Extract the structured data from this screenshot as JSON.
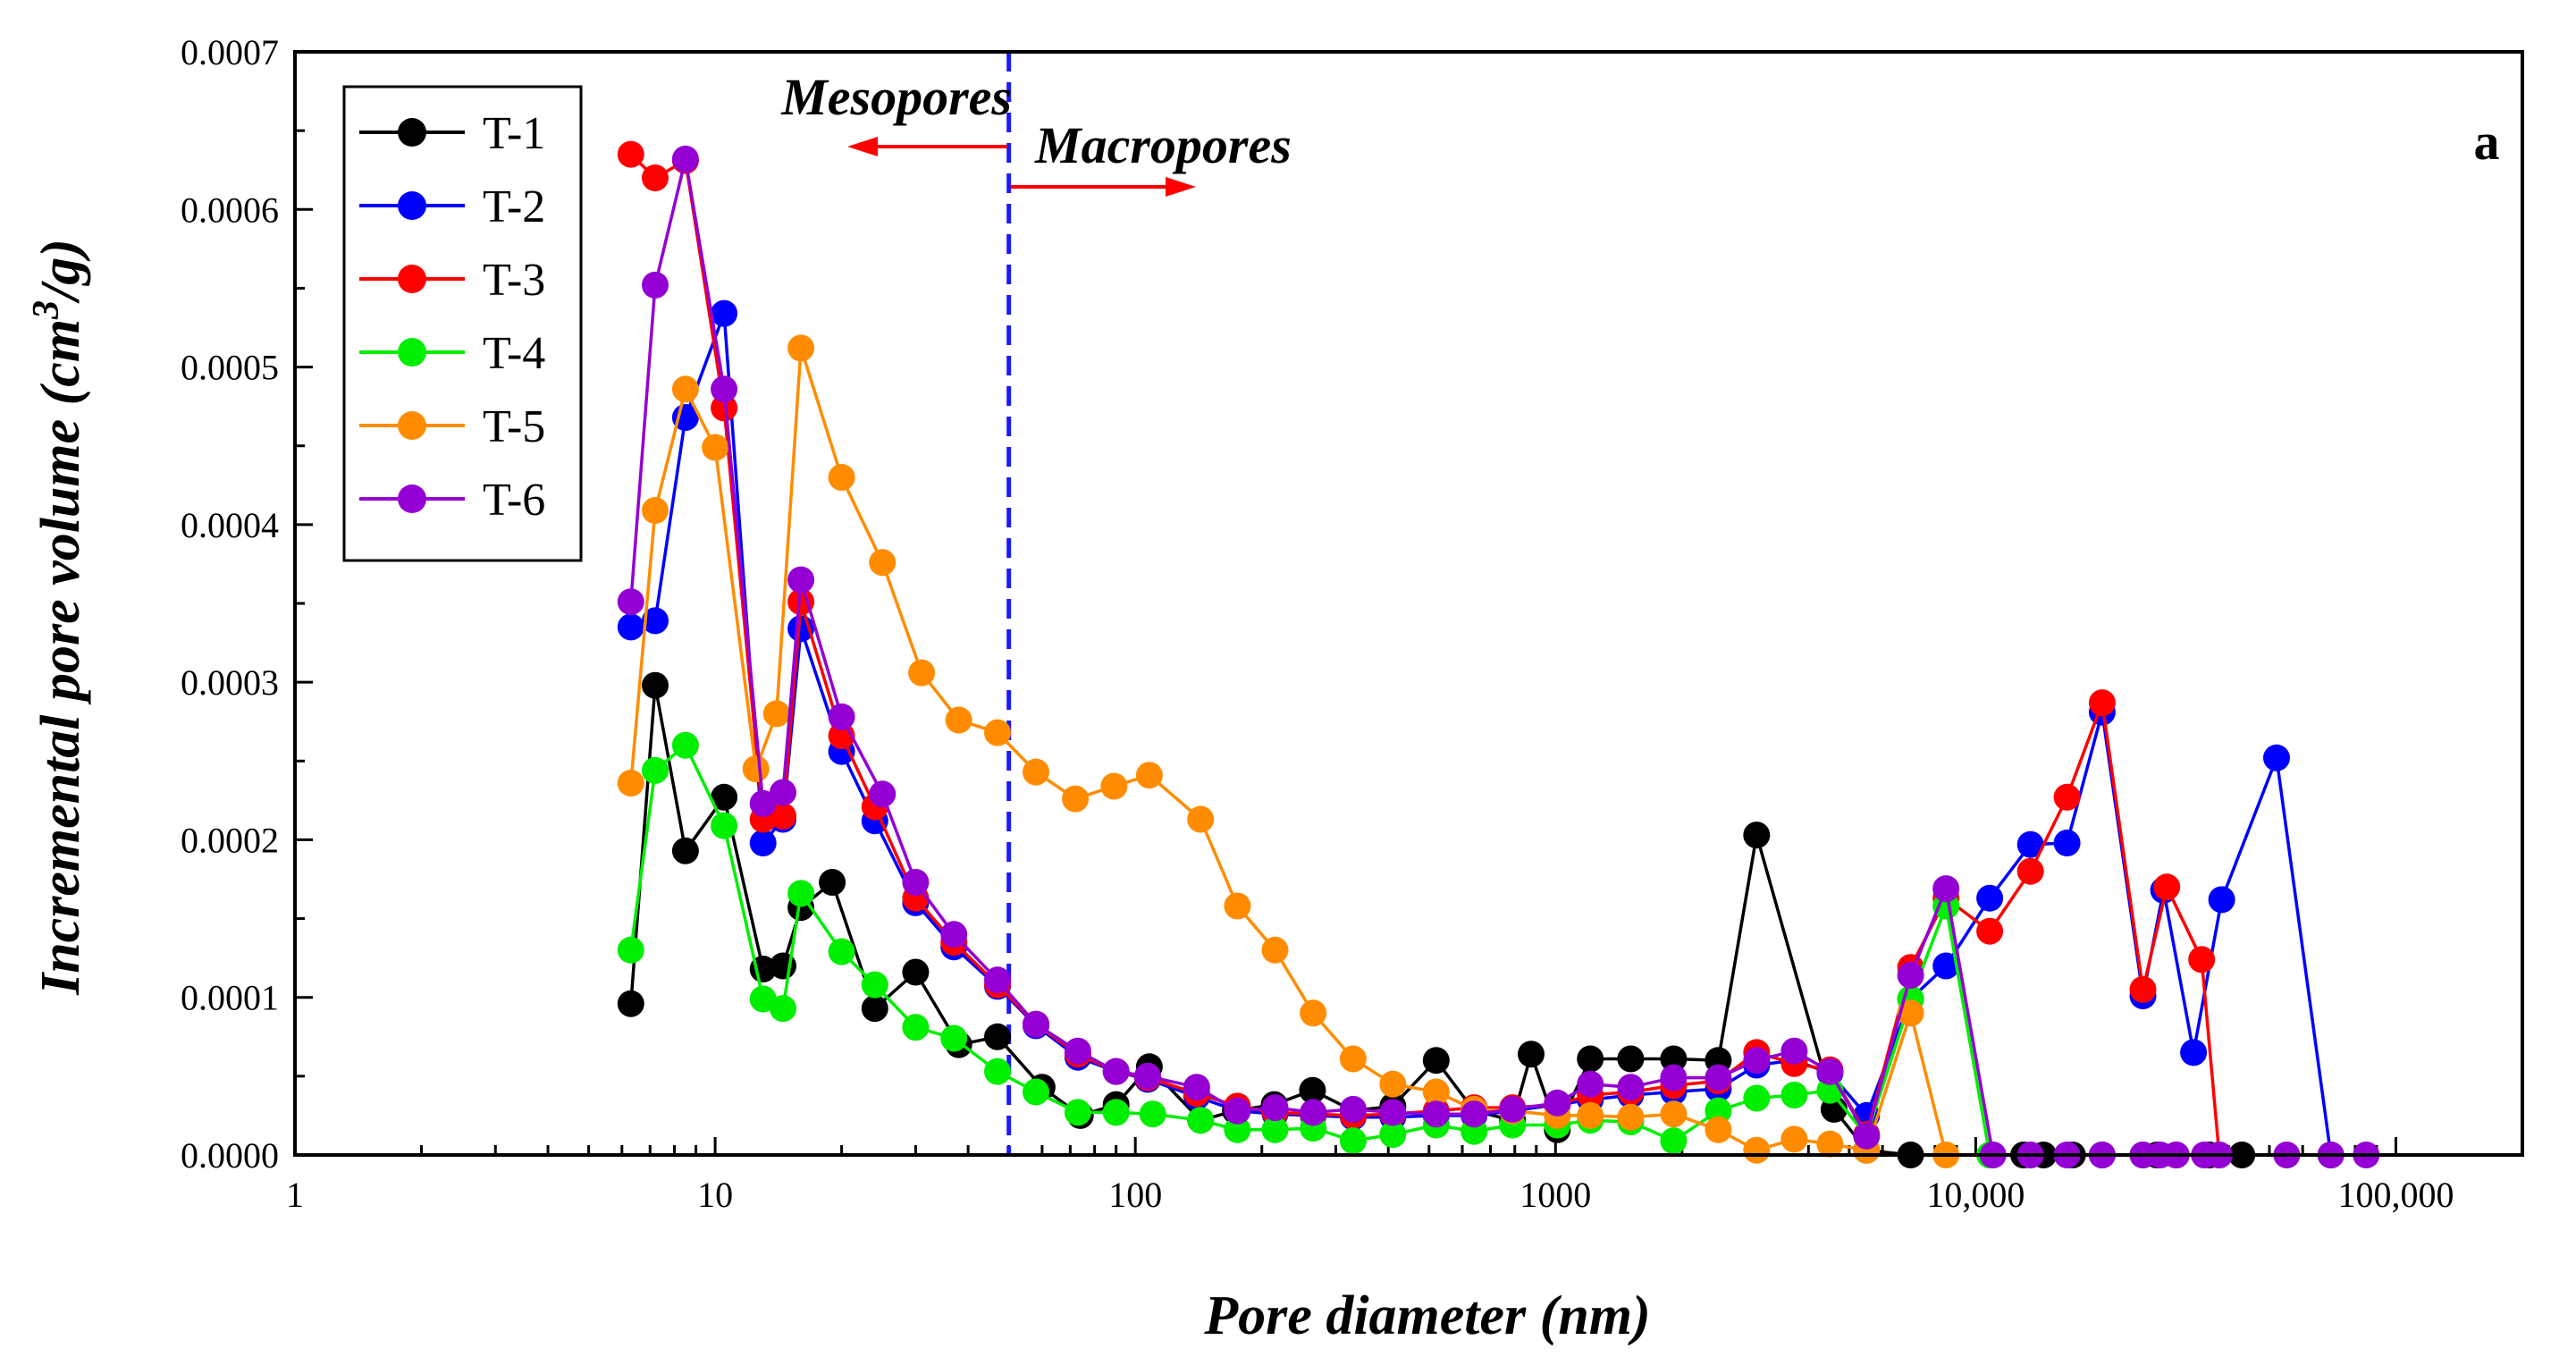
{
  "chart_data": {
    "type": "line",
    "xlabel": "Pore diameter (nm)",
    "ylabel_main": "Incremental pore volume",
    "ylabel_unit_prefix": "(cm",
    "ylabel_unit_sup": "3",
    "ylabel_unit_suffix": "/g)",
    "x_scale": "log",
    "xlim": [
      1,
      200000
    ],
    "ylim": [
      0,
      0.0007
    ],
    "x_ticks": [
      {
        "value": 1,
        "label": "1"
      },
      {
        "value": 10,
        "label": "10"
      },
      {
        "value": 100,
        "label": "100"
      },
      {
        "value": 1000,
        "label": "1000"
      },
      {
        "value": 10000,
        "label": "10,000"
      },
      {
        "value": 100000,
        "label": "100,000"
      }
    ],
    "y_ticks": [
      {
        "value": 0,
        "label": "0.0000"
      },
      {
        "value": 0.0001,
        "label": "0.0001"
      },
      {
        "value": 0.0002,
        "label": "0.0002"
      },
      {
        "value": 0.0003,
        "label": "0.0003"
      },
      {
        "value": 0.0004,
        "label": "0.0004"
      },
      {
        "value": 0.0005,
        "label": "0.0005"
      },
      {
        "value": 0.0006,
        "label": "0.0006"
      },
      {
        "value": 0.0007,
        "label": "0.0007"
      }
    ],
    "grid": false,
    "legend_position": "top-left",
    "boundary_line": {
      "x": 50,
      "color": "#1a1aff",
      "style": "dashed"
    },
    "annotations": {
      "mesopores": "Mesopores",
      "macropores": "Macropores",
      "arrow_color": "#ff0000",
      "panel_label": "a"
    },
    "series": [
      {
        "name": "T-1",
        "color": "#000000",
        "x": [
          6.3,
          7.2,
          8.5,
          10.5,
          13,
          14.5,
          16,
          19,
          24,
          30,
          38,
          47,
          60,
          74,
          90,
          108,
          143,
          173,
          214,
          264,
          330,
          410,
          520,
          640,
          790,
          875,
          1010,
          1210,
          1510,
          1910,
          2440,
          3010,
          4600,
          5500,
          7000,
          13000,
          14500,
          17000,
          20000,
          25000,
          27000,
          30000,
          36000,
          43000
        ],
        "values": [
          9.6e-05,
          0.000298,
          0.000193,
          0.000227,
          0.000118,
          0.00012,
          0.000157,
          0.000173,
          9.3e-05,
          0.000116,
          7e-05,
          7.5e-05,
          4.3e-05,
          2.5e-05,
          3.2e-05,
          5.6e-05,
          2.2e-05,
          2.8e-05,
          3.2e-05,
          4.1e-05,
          2.8e-05,
          3.1e-05,
          6e-05,
          2.8e-05,
          2.2e-05,
          6.4e-05,
          1.6e-05,
          6.1e-05,
          6.1e-05,
          6.1e-05,
          6e-05,
          0.000203,
          2.9e-05,
          3e-06,
          0.0,
          0.0,
          0.0,
          0.0,
          0.0,
          0.0,
          0.0,
          0.0,
          0.0,
          0.0
        ]
      },
      {
        "name": "T-2",
        "color": "#0000ff",
        "x": [
          6.3,
          7.2,
          8.5,
          10.5,
          13,
          14.5,
          16,
          20,
          24,
          30,
          37,
          47,
          58,
          73,
          90,
          107,
          140,
          175,
          215,
          265,
          330,
          410,
          520,
          640,
          790,
          1010,
          1210,
          1510,
          1910,
          2440,
          3010,
          3700,
          4500,
          5500,
          7000,
          8500,
          10800,
          13500,
          16500,
          20000,
          25000,
          28000,
          33000,
          38500,
          52000,
          70000
        ],
        "values": [
          0.000335,
          0.000339,
          0.000468,
          0.000534,
          0.000198,
          0.000213,
          0.000334,
          0.000256,
          0.000212,
          0.00016,
          0.000132,
          0.000107,
          8.2e-05,
          6.2e-05,
          5.3e-05,
          4.8e-05,
          3.7e-05,
          2.8e-05,
          2.6e-05,
          2.5e-05,
          2.4e-05,
          2.4e-05,
          2.5e-05,
          2.5e-05,
          2.8e-05,
          3.2e-05,
          3.5e-05,
          3.8e-05,
          4e-05,
          4.2e-05,
          5.7e-05,
          6e-05,
          5.2e-05,
          2.5e-05,
          9.9e-05,
          0.00012,
          0.000163,
          0.000197,
          0.000198,
          0.000281,
          0.000101,
          0.000168,
          6.5e-05,
          0.000162,
          0.000252,
          0.0
        ]
      },
      {
        "name": "T-3",
        "color": "#ff0000",
        "x": [
          6.3,
          7.2,
          8.5,
          10.5,
          13,
          14.5,
          16,
          20,
          24,
          30,
          37,
          47,
          58,
          73,
          90,
          107,
          140,
          175,
          215,
          265,
          330,
          410,
          520,
          640,
          790,
          1010,
          1210,
          1510,
          1910,
          2440,
          3010,
          3700,
          4500,
          5500,
          7000,
          8500,
          10800,
          13500,
          16500,
          20000,
          25000,
          28500,
          34500,
          38000
        ],
        "values": [
          0.000635,
          0.00062,
          0.000631,
          0.000474,
          0.000213,
          0.000215,
          0.000351,
          0.000266,
          0.000221,
          0.000163,
          0.000135,
          0.000108,
          8.3e-05,
          6.4e-05,
          5.3e-05,
          4.9e-05,
          3.9e-05,
          3.1e-05,
          2.7e-05,
          2.6e-05,
          2.5e-05,
          2.6e-05,
          2.8e-05,
          3e-05,
          3e-05,
          3.2e-05,
          3.8e-05,
          4e-05,
          4.4e-05,
          4.7e-05,
          6.5e-05,
          5.8e-05,
          5.4e-05,
          1.3e-05,
          0.000119,
          0.000163,
          0.000142,
          0.00018,
          0.000227,
          0.000287,
          0.000105,
          0.00017,
          0.000124,
          0.0
        ]
      },
      {
        "name": "T-4",
        "color": "#00ee00",
        "x": [
          6.3,
          7.2,
          8.5,
          10.5,
          13,
          14.5,
          16,
          20,
          24,
          30,
          37,
          47,
          58,
          73,
          90,
          110,
          143,
          175,
          215,
          265,
          330,
          410,
          520,
          640,
          790,
          1010,
          1210,
          1510,
          1910,
          2440,
          3010,
          3700,
          4500,
          5500,
          7000,
          8500,
          10800
        ],
        "values": [
          0.00013,
          0.000244,
          0.00026,
          0.000209,
          9.9e-05,
          9.3e-05,
          0.000166,
          0.000129,
          0.000108,
          8.1e-05,
          7.4e-05,
          5.3e-05,
          4e-05,
          2.7e-05,
          2.7e-05,
          2.6e-05,
          2.2e-05,
          1.6e-05,
          1.6e-05,
          1.7e-05,
          9e-06,
          1.3e-05,
          1.9e-05,
          1.5e-05,
          1.9e-05,
          1.9e-05,
          2.2e-05,
          2.1e-05,
          9e-06,
          2.8e-05,
          3.6e-05,
          3.8e-05,
          4.1e-05,
          1.2e-05,
          9.9e-05,
          0.000158,
          0.0
        ]
      },
      {
        "name": "T-5",
        "color": "#ff8c00",
        "x": [
          6.3,
          7.2,
          8.5,
          10,
          12.5,
          14,
          16,
          20,
          25,
          31,
          38,
          47,
          58,
          72,
          89,
          108,
          143,
          175,
          215,
          265,
          330,
          410,
          520,
          640,
          790,
          1010,
          1210,
          1510,
          1910,
          2440,
          3010,
          3700,
          4500,
          5500,
          7000,
          8500
        ],
        "values": [
          0.000236,
          0.000409,
          0.000486,
          0.000449,
          0.000245,
          0.00028,
          0.000512,
          0.00043,
          0.000376,
          0.000306,
          0.000276,
          0.000268,
          0.000243,
          0.000226,
          0.000234,
          0.000241,
          0.000213,
          0.000158,
          0.00013,
          9e-05,
          6.1e-05,
          4.5e-05,
          4e-05,
          2.9e-05,
          2.8e-05,
          2.5e-05,
          2.5e-05,
          2.4e-05,
          2.6e-05,
          1.6e-05,
          3e-06,
          1e-05,
          7e-06,
          3e-06,
          9e-05,
          0.0
        ]
      },
      {
        "name": "T-6",
        "color": "#9400d3",
        "x": [
          6.3,
          7.2,
          8.5,
          10.5,
          13,
          14.5,
          16,
          20,
          25,
          30,
          37,
          47,
          58,
          73,
          90,
          107,
          140,
          175,
          215,
          265,
          330,
          410,
          520,
          640,
          790,
          1010,
          1210,
          1510,
          1910,
          2440,
          3010,
          3700,
          4500,
          5500,
          7000,
          8500,
          11000,
          13500,
          16500,
          20000,
          25000,
          27500,
          30000,
          35000,
          38000,
          55000,
          70000,
          85000
        ],
        "values": [
          0.000351,
          0.000552,
          0.000632,
          0.000486,
          0.000223,
          0.00023,
          0.000365,
          0.000278,
          0.000229,
          0.000173,
          0.00014,
          0.000111,
          8.3e-05,
          6.6e-05,
          5.3e-05,
          5e-05,
          4.3e-05,
          2.8e-05,
          3e-05,
          2.7e-05,
          2.9e-05,
          2.7e-05,
          2.6e-05,
          2.6e-05,
          2.9e-05,
          3.3e-05,
          4.5e-05,
          4.3e-05,
          4.9e-05,
          4.9e-05,
          6e-05,
          6.6e-05,
          5.3e-05,
          1.2e-05,
          0.000114,
          0.000169,
          0.0,
          0.0,
          0.0,
          0.0,
          0.0,
          0.0,
          0.0,
          0.0,
          0.0,
          0.0,
          0.0,
          0.0
        ]
      }
    ]
  }
}
